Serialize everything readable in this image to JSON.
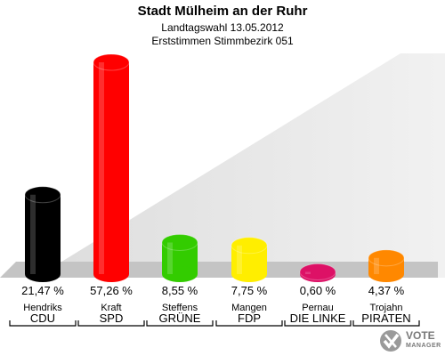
{
  "chart_data": {
    "type": "bar",
    "title": "Stadt Mülheim an der Ruhr",
    "subtitle1": "Landtagswahl 13.05.2012",
    "subtitle2": "Erststimmen Stimmbezirk 051",
    "categories": [
      "CDU",
      "SPD",
      "GRÜNE",
      "FDP",
      "DIE LINKE",
      "PIRATEN"
    ],
    "candidates": [
      "Hendriks",
      "Kraft",
      "Steffens",
      "Mangen",
      "Pernau",
      "Trojahn"
    ],
    "values": [
      21.47,
      57.26,
      8.55,
      7.75,
      0.6,
      4.37
    ],
    "value_labels": [
      "21,47 %",
      "57,26 %",
      "8,55 %",
      "7,75 %",
      "0,60 %",
      "4,37 %"
    ],
    "colors": [
      "#000000",
      "#ff0000",
      "#33cc00",
      "#ffee00",
      "#dd1166",
      "#ff8800"
    ],
    "ylim": [
      0,
      60
    ]
  },
  "logo": {
    "line1": "VOTE",
    "line2": "MANAGER"
  }
}
